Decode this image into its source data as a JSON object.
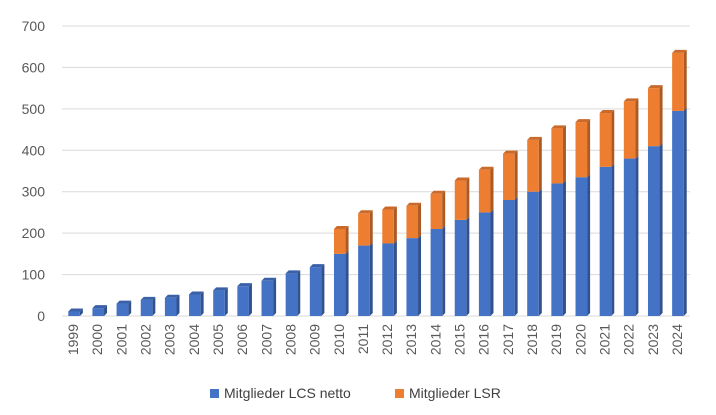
{
  "chart_data": {
    "type": "bar",
    "stacked": true,
    "categories": [
      "1999",
      "2000",
      "2001",
      "2002",
      "2003",
      "2004",
      "2005",
      "2006",
      "2007",
      "2008",
      "2009",
      "2010",
      "2011",
      "2012",
      "2013",
      "2014",
      "2015",
      "2016",
      "2017",
      "2018",
      "2019",
      "2020",
      "2021",
      "2022",
      "2023",
      "2024"
    ],
    "series": [
      {
        "name": "Mitglieder LCS netto",
        "color": "#4472C4",
        "values": [
          11,
          19,
          30,
          39,
          44,
          52,
          62,
          72,
          85,
          103,
          118,
          150,
          170,
          175,
          188,
          210,
          232,
          250,
          280,
          300,
          320,
          335,
          360,
          380,
          410,
          495
        ]
      },
      {
        "name": "Mitglieder LSR",
        "color": "#ED7D31",
        "values": [
          0,
          0,
          0,
          0,
          0,
          0,
          0,
          0,
          0,
          0,
          0,
          60,
          78,
          82,
          78,
          85,
          95,
          103,
          112,
          125,
          133,
          133,
          130,
          138,
          140,
          140
        ]
      }
    ],
    "ylim": [
      0,
      700
    ],
    "yticks": [
      "0",
      "100",
      "200",
      "300",
      "400",
      "500",
      "600",
      "700"
    ],
    "grid": true,
    "legend_position": "bottom",
    "bar_style": "3d"
  }
}
